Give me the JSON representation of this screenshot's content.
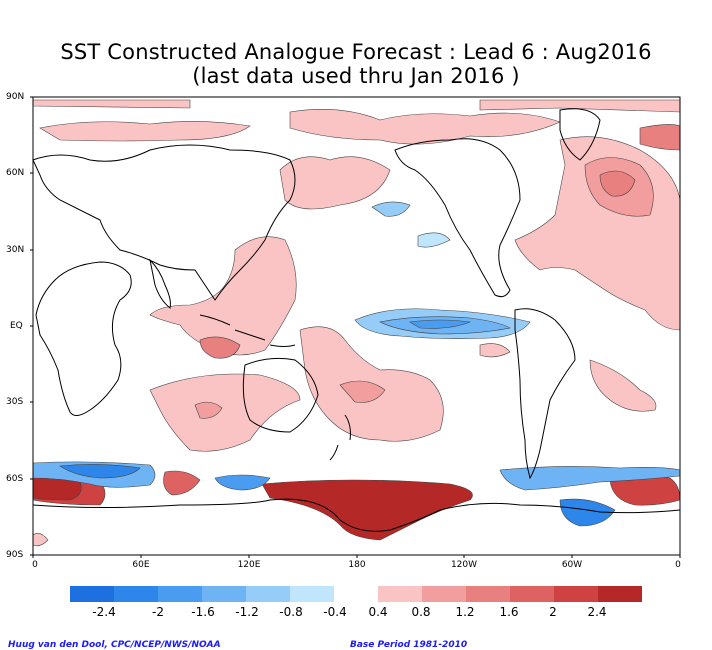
{
  "title_line1": "SST Constructed Analogue Forecast : Lead 6 : Aug2016",
  "title_line2": "(last data used thru Jan 2016 )",
  "lat_labels": [
    "90N",
    "60N",
    "30N",
    "EQ",
    "30S",
    "60S",
    "90S"
  ],
  "lon_labels": [
    "0",
    "60E",
    "120E",
    "180",
    "120W",
    "60W",
    "0"
  ],
  "colorbar": {
    "negative_colors": [
      "#1e6fe0",
      "#2f86ea",
      "#4a9cf0",
      "#6eb4f5",
      "#96cdf8",
      "#bfe6fc"
    ],
    "positive_colors": [
      "#fbc4c4",
      "#f39e9e",
      "#e98080",
      "#df6262",
      "#cf4242",
      "#b42828"
    ],
    "labels": [
      "-2.4",
      "-2",
      "-1.6",
      "-1.2",
      "-0.8",
      "-0.4",
      "0.4",
      "0.8",
      "1.2",
      "1.6",
      "2",
      "2.4"
    ]
  },
  "credit_left": "Huug van den Dool, CPC/NCEP/NWS/NOAA",
  "credit_right": "Base Period 1981-2010"
}
